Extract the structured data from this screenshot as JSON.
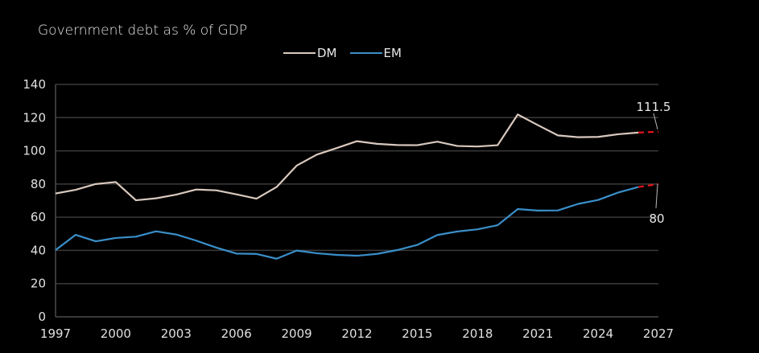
{
  "chart_data": {
    "type": "line",
    "title": "Government debt as % of GDP",
    "xlabel": "",
    "ylabel": "",
    "x": [
      1997,
      1998,
      1999,
      2000,
      2001,
      2002,
      2003,
      2004,
      2005,
      2006,
      2007,
      2008,
      2009,
      2010,
      2011,
      2012,
      2013,
      2014,
      2015,
      2016,
      2017,
      2018,
      2019,
      2020,
      2021,
      2022,
      2023,
      2024,
      2025,
      2026,
      2027
    ],
    "xticks": [
      1997,
      2000,
      2003,
      2006,
      2009,
      2012,
      2015,
      2018,
      2021,
      2024,
      2027
    ],
    "xtick_labels": [
      "1997",
      "2000",
      "2003",
      "2006",
      "2009",
      "2012",
      "2015",
      "2018",
      "2021",
      "2024",
      "2027"
    ],
    "xlim": [
      1997,
      2027
    ],
    "ylim": [
      0,
      140
    ],
    "yticks": [
      0,
      20,
      40,
      60,
      80,
      100,
      120,
      140
    ],
    "ytick_labels": [
      "0",
      "20",
      "40",
      "60",
      "80",
      "100",
      "120",
      "140"
    ],
    "grid": "horizontal",
    "legend_position": "top-center",
    "forecast_start": 2026,
    "forecast_color": "#e8141c",
    "series": [
      {
        "name": "DM",
        "color": "#d9c8bd",
        "values": [
          74.3,
          76.5,
          80.0,
          81.2,
          70.2,
          71.4,
          73.6,
          76.7,
          76.2,
          73.8,
          71.2,
          78.2,
          91.1,
          97.7,
          101.7,
          105.8,
          104.2,
          103.5,
          103.4,
          105.5,
          102.9,
          102.6,
          103.4,
          121.9,
          115.5,
          109.3,
          108.2,
          108.4,
          110.0,
          111.0,
          111.5
        ]
      },
      {
        "name": "EM",
        "color": "#3a8fc9",
        "values": [
          40.2,
          49.4,
          45.5,
          47.5,
          48.3,
          51.5,
          49.6,
          45.9,
          41.7,
          38.1,
          37.9,
          35.0,
          39.9,
          38.3,
          37.3,
          36.8,
          37.9,
          40.2,
          43.3,
          49.3,
          51.4,
          52.7,
          55.2,
          64.9,
          64.0,
          64.1,
          68.0,
          70.4,
          74.9,
          78.2,
          80.0
        ]
      }
    ],
    "annotations": [
      {
        "series": "DM",
        "x": 2027,
        "text": "111.5"
      },
      {
        "series": "EM",
        "x": 2027,
        "text": "80"
      }
    ]
  }
}
